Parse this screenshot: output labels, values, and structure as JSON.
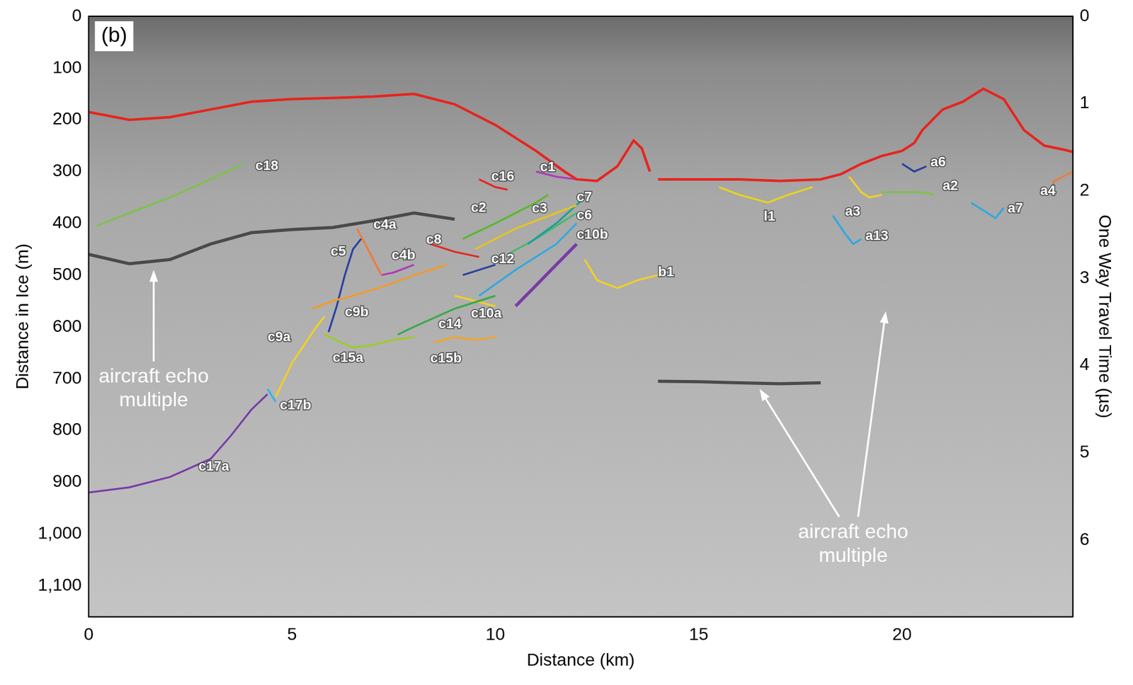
{
  "chart_data": {
    "type": "line",
    "panel_label": "(b)",
    "x_label": "Distance (km)",
    "y_label": "Distance in Ice (m)",
    "y2_label": "One Way Travel Time (µs)",
    "xlim": [
      0,
      24.2
    ],
    "xticks": [
      0,
      5,
      10,
      15,
      20
    ],
    "ylim": [
      0,
      1160
    ],
    "yticks": [
      0,
      100,
      200,
      300,
      400,
      500,
      600,
      700,
      800,
      900,
      1000,
      1100
    ],
    "y2lim": [
      0,
      6.88
    ],
    "y2ticks": [
      0,
      1,
      2,
      3,
      4,
      5,
      6
    ],
    "grid": false,
    "series": [
      {
        "color": "#4a4a4a",
        "x": [
          0,
          1,
          2,
          3,
          4,
          5,
          6,
          7,
          8,
          9
        ],
        "values": [
          460,
          478,
          470,
          440,
          418,
          412,
          408,
          395,
          380,
          392
        ]
      },
      {
        "color": "#4a4a4a",
        "x": [
          14,
          15,
          16,
          17,
          18
        ],
        "values": [
          705,
          706,
          708,
          710,
          708
        ]
      },
      {
        "color": "#e8231e",
        "x": [
          0,
          1,
          2,
          3,
          4,
          5,
          6,
          7,
          8,
          9,
          10,
          11,
          11.7,
          12,
          12.5,
          13,
          13.4,
          13.6,
          13.8,
          null,
          14,
          15,
          16,
          17,
          18,
          18.5,
          19,
          19.5,
          20,
          20.3,
          20.5,
          21,
          21.5,
          21.8,
          22,
          22.5,
          23,
          23.5,
          24,
          24.2
        ],
        "values": [
          185,
          200,
          195,
          180,
          165,
          160,
          158,
          155,
          150,
          170,
          210,
          260,
          300,
          315,
          318,
          290,
          240,
          255,
          300,
          null,
          315,
          315,
          315,
          318,
          315,
          305,
          285,
          270,
          260,
          245,
          220,
          180,
          165,
          150,
          140,
          160,
          220,
          250,
          258,
          262
        ]
      },
      {
        "name": "c18",
        "color": "#7cc24a",
        "x": [
          0.2,
          1,
          2,
          3,
          3.8
        ],
        "values": [
          405,
          380,
          350,
          315,
          285
        ],
        "label_x": 4.1,
        "label_y": 290
      },
      {
        "name": "c17a",
        "color": "#7a3aa8",
        "x": [
          0,
          1,
          2,
          3,
          3.5,
          4,
          4.4
        ],
        "values": [
          920,
          910,
          890,
          855,
          810,
          760,
          730
        ],
        "label_x": 2.7,
        "label_y": 870
      },
      {
        "name": "c17b",
        "color": "#2fb6e8",
        "x": [
          4.4,
          4.6
        ],
        "values": [
          720,
          745
        ],
        "label_x": 4.7,
        "label_y": 752
      },
      {
        "name": "c9a",
        "color": "#f2d024",
        "x": [
          4.6,
          5,
          5.3,
          5.6,
          5.8
        ],
        "values": [
          735,
          670,
          635,
          600,
          580
        ],
        "label_x": 4.4,
        "label_y": 620
      },
      {
        "name": "c9b",
        "color": "#f29a2e",
        "x": [
          5.5,
          6,
          6.5,
          7,
          7.5,
          8,
          8.5,
          8.8
        ],
        "values": [
          565,
          550,
          540,
          528,
          515,
          500,
          488,
          480
        ],
        "label_x": 6.3,
        "label_y": 572
      },
      {
        "name": "c5",
        "color": "#2a3f9e",
        "x": [
          5.9,
          6.1,
          6.3,
          6.5,
          6.7
        ],
        "values": [
          610,
          560,
          500,
          450,
          430
        ],
        "label_x": 5.95,
        "label_y": 455
      },
      {
        "name": "c4a",
        "color": "#f07a3a",
        "x": [
          6.6,
          6.8,
          7,
          7.2
        ],
        "values": [
          410,
          440,
          470,
          500
        ],
        "label_x": 7.0,
        "label_y": 403
      },
      {
        "name": "c4b",
        "color": "#b03ab8",
        "x": [
          7.2,
          7.5,
          8
        ],
        "values": [
          500,
          495,
          480
        ],
        "label_x": 7.45,
        "label_y": 462
      },
      {
        "name": "c15a",
        "color": "#9ccc2c",
        "x": [
          5.8,
          6.5,
          7,
          7.5,
          8
        ],
        "values": [
          615,
          640,
          635,
          625,
          620
        ],
        "label_x": 6.0,
        "label_y": 660
      },
      {
        "name": "c15b",
        "color": "#f0a52e",
        "x": [
          8.5,
          9,
          9.5,
          10
        ],
        "values": [
          630,
          620,
          625,
          620
        ],
        "label_x": 8.4,
        "label_y": 662
      },
      {
        "name": "c14",
        "color": "#3aa84a",
        "x": [
          7.6,
          8,
          9,
          10
        ],
        "values": [
          615,
          600,
          565,
          540
        ],
        "label_x": 8.6,
        "label_y": 595
      },
      {
        "name": "c10a",
        "color": "#f2d024",
        "x": [
          9,
          9.5,
          10
        ],
        "values": [
          540,
          550,
          560
        ],
        "label_x": 9.4,
        "label_y": 575
      },
      {
        "name": "c8",
        "color": "#e8231e",
        "x": [
          8.4,
          9,
          9.6
        ],
        "values": [
          440,
          455,
          465
        ],
        "label_x": 8.3,
        "label_y": 432
      },
      {
        "name": "c12",
        "color": "#2a3f9e",
        "x": [
          9.2,
          9.6,
          10
        ],
        "values": [
          500,
          490,
          480
        ],
        "label_x": 9.9,
        "label_y": 470
      },
      {
        "name": "c2",
        "color": "#5ab82e",
        "x": [
          9.2,
          10,
          11,
          11.3
        ],
        "values": [
          430,
          400,
          360,
          345
        ],
        "label_x": 9.4,
        "label_y": 370
      },
      {
        "name": "c3",
        "color": "#e6c41e",
        "x": [
          9.5,
          10.5,
          11.5,
          12
        ],
        "values": [
          450,
          410,
          380,
          365
        ],
        "label_x": 10.9,
        "label_y": 372
      },
      {
        "name": "c16",
        "color": "#e8231e",
        "x": [
          9.6,
          10,
          10.3
        ],
        "values": [
          315,
          330,
          335
        ],
        "label_x": 9.9,
        "label_y": 310
      },
      {
        "name": "c1",
        "color": "#b03ab8",
        "x": [
          11,
          11.5,
          12
        ],
        "values": [
          300,
          310,
          315
        ],
        "label_x": 11.1,
        "label_y": 292
      },
      {
        "name": "c7",
        "color": "#1f9e9a",
        "x": [
          10.8,
          11.5,
          12.2
        ],
        "values": [
          440,
          400,
          350
        ],
        "label_x": 12.0,
        "label_y": 350
      },
      {
        "name": "c6",
        "color": "#4ab86a",
        "x": [
          10.3,
          11,
          12
        ],
        "values": [
          460,
          430,
          380
        ],
        "label_x": 12.0,
        "label_y": 385
      },
      {
        "name": "c10b",
        "color": "#2fa8e0",
        "x": [
          9.6,
          10.5,
          11.5,
          12
        ],
        "values": [
          540,
          490,
          440,
          400
        ],
        "label_x": 12.0,
        "label_y": 422
      },
      {
        "color": "#7a3aa8",
        "x": [
          10.5,
          11,
          11.5,
          12
        ],
        "values": [
          560,
          520,
          480,
          440
        ]
      },
      {
        "name": "b1",
        "color": "#f2d024",
        "x": [
          12.2,
          12.5,
          13,
          13.5,
          14
        ],
        "values": [
          470,
          510,
          525,
          510,
          500
        ],
        "label_x": 14.0,
        "label_y": 495
      },
      {
        "name": "l1",
        "color": "#e6d41e",
        "x": [
          15.5,
          16,
          16.7,
          17.2,
          17.8
        ],
        "values": [
          330,
          345,
          360,
          345,
          330
        ],
        "label_x": 16.6,
        "label_y": 388
      },
      {
        "name": "a3",
        "color": "#f2d024",
        "x": [
          18.7,
          19,
          19.2,
          19.5
        ],
        "values": [
          310,
          340,
          350,
          345
        ],
        "label_x": 18.6,
        "label_y": 378
      },
      {
        "name": "a2",
        "color": "#7cc24a",
        "x": [
          19.5,
          20.5,
          20.8
        ],
        "values": [
          340,
          340,
          345
        ],
        "label_x": 21.0,
        "label_y": 328
      },
      {
        "name": "a6",
        "color": "#2a3f9e",
        "x": [
          20,
          20.3,
          20.6
        ],
        "values": [
          285,
          300,
          290
        ],
        "label_x": 20.7,
        "label_y": 282
      },
      {
        "name": "a13",
        "color": "#2fa8e0",
        "x": [
          18.3,
          18.6,
          18.8,
          19
        ],
        "values": [
          385,
          420,
          440,
          430
        ],
        "label_x": 19.1,
        "label_y": 425
      },
      {
        "name": "a7",
        "color": "#2fa8e0",
        "x": [
          21.7,
          22.3,
          22.5
        ],
        "values": [
          360,
          390,
          370
        ],
        "label_x": 22.6,
        "label_y": 372
      },
      {
        "name": "a4",
        "color": "#f07a3a",
        "x": [
          23.7,
          24.2
        ],
        "values": [
          320,
          300
        ],
        "label_x": 23.4,
        "label_y": 338
      }
    ],
    "annotations": [
      {
        "text": "aircraft echo multiple",
        "x": 1.6,
        "y": 720,
        "arrows": [
          [
            1.6,
            490
          ]
        ]
      },
      {
        "text": "aircraft echo multiple",
        "x": 18.8,
        "y": 1020,
        "arrows": [
          [
            16.5,
            720
          ],
          [
            19.6,
            570
          ]
        ]
      }
    ]
  }
}
